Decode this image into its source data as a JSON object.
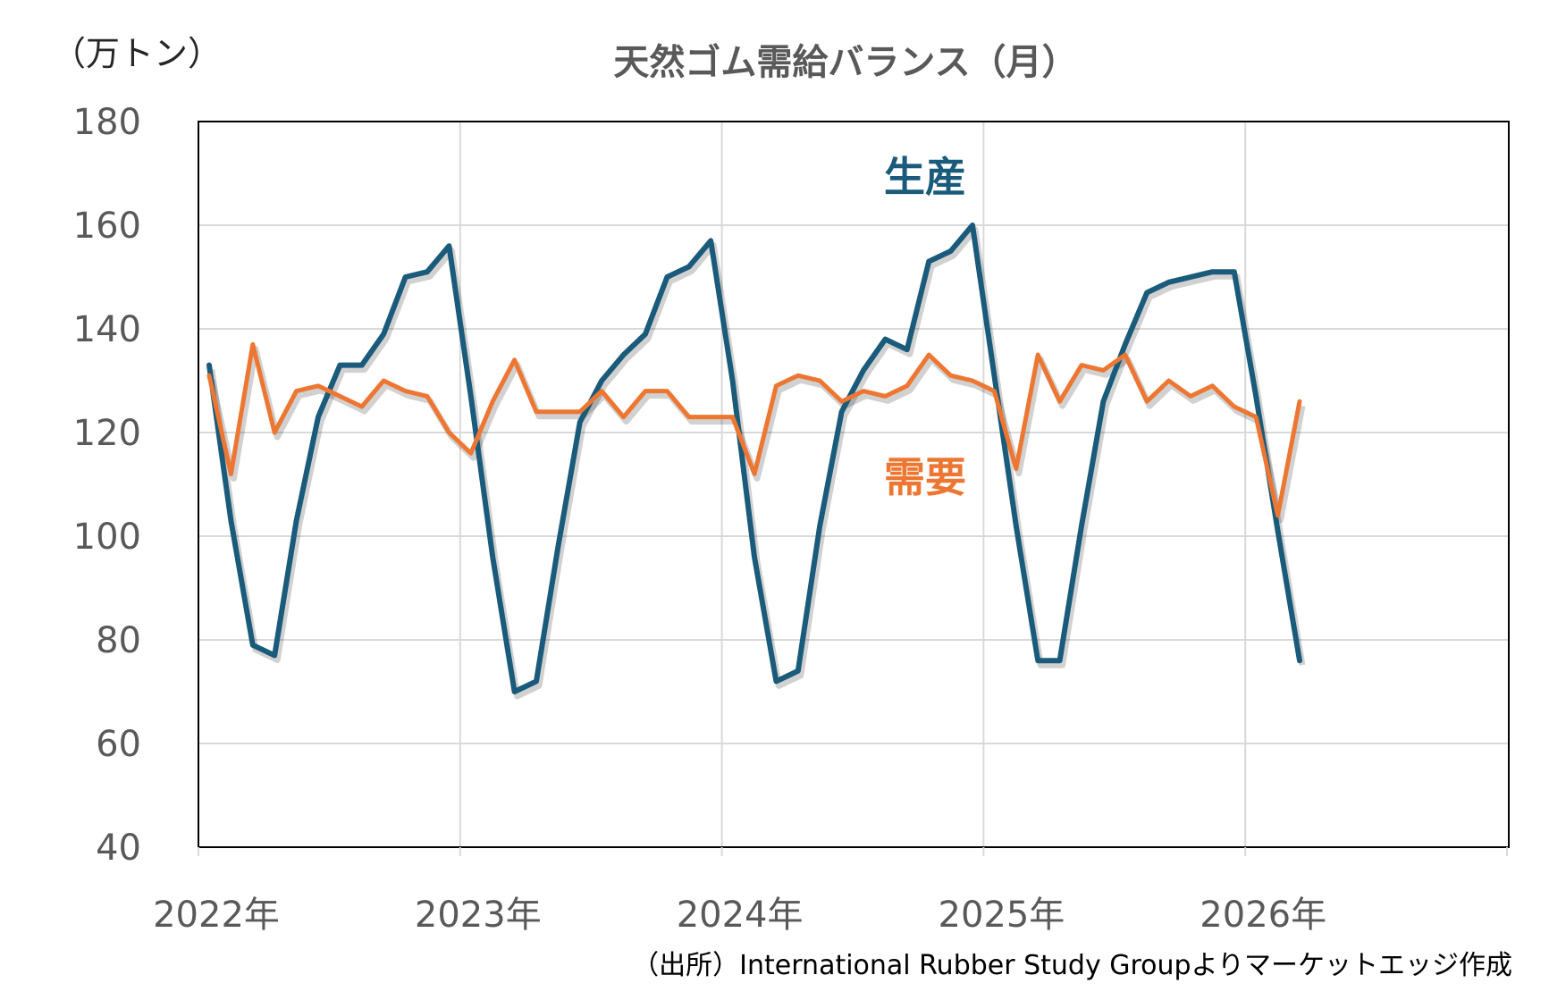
{
  "chart_data": {
    "type": "line",
    "title": "天然ゴム需給バランス（月）",
    "unit_label": "（万トン）",
    "source": "（出所）International Rubber Study Groupよりマーケットエッジ作成",
    "ylim": [
      40,
      180
    ],
    "y_ticks": [
      "180",
      "160",
      "140",
      "120",
      "100",
      "80",
      "60",
      "40"
    ],
    "x_ticks": [
      "2022年",
      "2023年",
      "2024年",
      "2025年",
      "2026年"
    ],
    "grid": true,
    "colors": {
      "production": "#1a5a7a",
      "demand": "#ed7732"
    },
    "series": [
      {
        "name": "生産",
        "values": [
          133,
          103,
          79,
          77,
          103,
          123,
          133,
          133,
          139,
          150,
          151,
          156,
          127,
          96,
          70,
          72,
          98,
          122,
          130,
          135,
          139,
          150,
          152,
          157,
          130,
          96,
          72,
          74,
          102,
          124,
          132,
          138,
          136,
          153,
          155,
          160,
          131,
          102,
          76,
          76,
          102,
          126,
          137,
          147,
          149,
          150,
          151,
          151,
          127,
          101,
          76
        ]
      },
      {
        "name": "需要",
        "values": [
          131,
          112,
          137,
          120,
          128,
          129,
          127,
          125,
          130,
          128,
          127,
          120,
          116,
          126,
          134,
          124,
          124,
          124,
          128,
          123,
          128,
          128,
          123,
          123,
          123,
          112,
          129,
          131,
          130,
          126,
          128,
          127,
          129,
          135,
          131,
          130,
          128,
          113,
          135,
          126,
          133,
          132,
          135,
          126,
          130,
          127,
          129,
          125,
          123,
          104,
          126
        ]
      }
    ]
  }
}
